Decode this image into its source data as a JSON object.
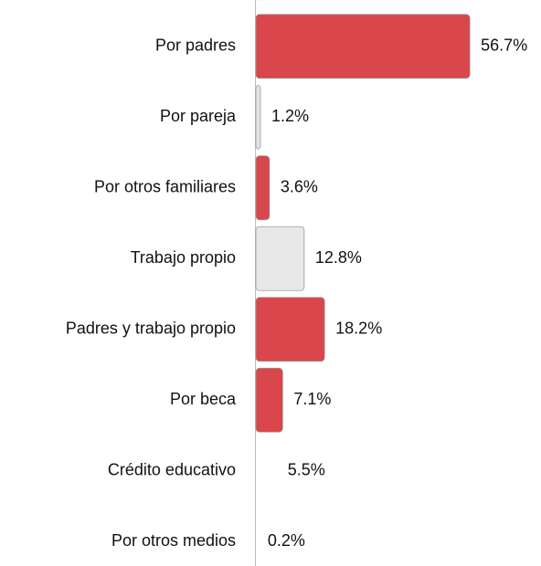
{
  "chart_data": {
    "type": "hbar",
    "categories": [
      "Por padres",
      "Por pareja",
      "Por otros familiares",
      "Trabajo propio",
      "Padres y trabajo propio",
      "Por beca",
      "Crédito educativo",
      "Por otros medios"
    ],
    "values": [
      56.7,
      1.2,
      3.6,
      12.8,
      18.2,
      7.1,
      5.5,
      0.2
    ],
    "value_labels": [
      "56.7%",
      "1.2%",
      "3.6%",
      "12.8%",
      "18.2%",
      "7.1%",
      "5.5%",
      "0.2%"
    ],
    "colors": [
      "#d9464b",
      "#e4e4e4",
      "#d9464b",
      "#e8e8e8",
      "#d9464b",
      "#d9464b",
      "#ffffff",
      "#ffffff"
    ]
  }
}
